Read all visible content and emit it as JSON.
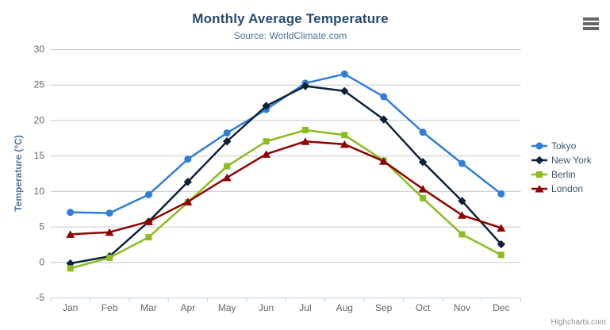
{
  "header": {
    "title": "Monthly Average Temperature",
    "subtitle": "Source: WorldClimate.com"
  },
  "credits": {
    "label": "Highcharts.com"
  },
  "chart_data": {
    "type": "line",
    "title": "Monthly Average Temperature",
    "subtitle": "Source: WorldClimate.com",
    "categories": [
      "Jan",
      "Feb",
      "Mar",
      "Apr",
      "May",
      "Jun",
      "Jul",
      "Aug",
      "Sep",
      "Oct",
      "Nov",
      "Dec"
    ],
    "series": [
      {
        "name": "Tokyo",
        "color": "#2f7ed8",
        "marker": "circle",
        "values": [
          7.0,
          6.9,
          9.5,
          14.5,
          18.2,
          21.5,
          25.2,
          26.5,
          23.3,
          18.3,
          13.9,
          9.6
        ]
      },
      {
        "name": "New York",
        "color": "#0d233a",
        "marker": "diamond",
        "values": [
          -0.2,
          0.8,
          5.7,
          11.3,
          17.0,
          22.0,
          24.8,
          24.1,
          20.1,
          14.1,
          8.6,
          2.5
        ]
      },
      {
        "name": "Berlin",
        "color": "#8bbc21",
        "marker": "square",
        "values": [
          -0.9,
          0.6,
          3.5,
          8.4,
          13.5,
          17.0,
          18.6,
          17.9,
          14.3,
          9.0,
          3.9,
          1.0
        ]
      },
      {
        "name": "London",
        "color": "#910000",
        "marker": "triangle",
        "values": [
          3.9,
          4.2,
          5.7,
          8.5,
          11.9,
          15.2,
          17.0,
          16.6,
          14.2,
          10.3,
          6.6,
          4.8
        ]
      }
    ],
    "xlabel": "",
    "ylabel": "Temperature (°C)",
    "ylim": [
      -5,
      30
    ],
    "yticks": [
      -5,
      0,
      5,
      10,
      15,
      20,
      25,
      30
    ],
    "grid": true,
    "legend_position": "right"
  },
  "colors": {
    "title": "#274b6d",
    "subtitle": "#4d759e",
    "axis_title": "#4d759e",
    "axis_labels": "#666666",
    "gridline": "#c8c8c8",
    "axis_line": "#c0d0e0",
    "legend_text": "#3e576f",
    "credit_text": "#909090",
    "menu_icon": "#666666"
  }
}
